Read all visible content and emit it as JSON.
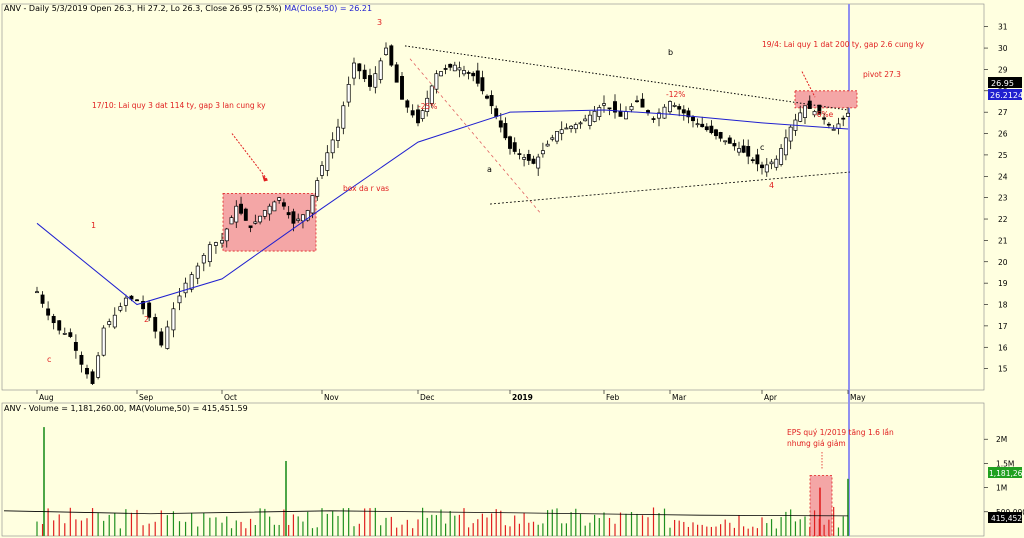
{
  "price_panel": {
    "header": "ANV - Daily 5/3/2019 Open 26.3, Hi 27.2, Lo 26.3, Close 26.95 (2.5%)",
    "ma_label": "MA(Close,50) = 26.21",
    "last_price_tag": "26.95",
    "ma_tag": "26.2124"
  },
  "volume_panel": {
    "header": "ANV - Volume = 1,181,260.00, MA(Volume,50) = 415,451.59",
    "volume_tag": "1,181,260",
    "ma_tag": "415,452"
  },
  "annotations": {
    "note_oct": "17/10: Lai quy 3 dat 114 ty, gap 3 lan cung ky",
    "box_label": "box da r vas",
    "note_apr": "19/4: Lai quy 1 dat 200 ty, gap 2.6 cung ky",
    "pivot": "pivot 27.3",
    "pct_25": "-25%",
    "pct_12": "-12%",
    "pct_6": "-6%e",
    "wave_1": "1",
    "wave_2": "2",
    "wave_3": "3",
    "wave_4": "4",
    "wave_c_aug": "c",
    "wave_a": "a",
    "wave_b": "b",
    "wave_c_apr": "c",
    "eps_note_1": "EPS quý 1/2019 tăng 1.6 lần",
    "eps_note_2": "nhưng giá giảm"
  },
  "colors": {
    "background": "#ffffe0",
    "up_candle": "#ffffff",
    "down_candle": "#000000",
    "ma_line": "#2020d0",
    "annotation": "#e02020",
    "highlight_box": "#f4a6a6",
    "volume_up": "#209020",
    "volume_down": "#e02020",
    "price_tag": "#000000",
    "ma_tag": "#2020d0",
    "volume_tag": "#20a020",
    "date_marker": "#9090f0"
  },
  "chart_data": [
    {
      "type": "candlestick",
      "title": "ANV - Daily 5/3/2019",
      "y_ticks": [
        15,
        16,
        17,
        18,
        19,
        20,
        21,
        22,
        23,
        24,
        25,
        26,
        27,
        28,
        29,
        30,
        31
      ],
      "ylim": [
        14,
        31.5
      ],
      "x_ticks": [
        "Aug",
        "Sep",
        "Oct",
        "Nov",
        "Dec",
        "2019",
        "Feb",
        "Mar",
        "Apr",
        "May"
      ],
      "price_path": [
        [
          "Aug",
          18.6
        ],
        [
          "Aug",
          17.5
        ],
        [
          "Aug",
          16.8
        ],
        [
          "Aug",
          16.5
        ],
        [
          "Aug",
          15.2
        ],
        [
          "Aug",
          14.3
        ],
        [
          "Aug",
          16.9
        ],
        [
          "Aug",
          17.5
        ],
        [
          "Aug",
          18.3
        ],
        [
          "Sep",
          18.2
        ],
        [
          "Sep",
          17.4
        ],
        [
          "Sep",
          16.1
        ],
        [
          "Sep",
          17.8
        ],
        [
          "Sep",
          19.0
        ],
        [
          "Sep",
          19.8
        ],
        [
          "Sep",
          20.8
        ],
        [
          "Oct",
          21.0
        ],
        [
          "Oct",
          22.6
        ],
        [
          "Oct",
          21.6
        ],
        [
          "Oct",
          22.4
        ],
        [
          "Oct",
          23.0
        ],
        [
          "Oct",
          21.8
        ],
        [
          "Oct",
          22.4
        ],
        [
          "Nov",
          24.5
        ],
        [
          "Nov",
          26.3
        ],
        [
          "Nov",
          29.3
        ],
        [
          "Nov",
          28.2
        ],
        [
          "Nov",
          30.0
        ],
        [
          "Nov",
          27.6
        ],
        [
          "Dec",
          26.5
        ],
        [
          "Dec",
          28.8
        ],
        [
          "Dec",
          29.2
        ],
        [
          "Dec",
          28.7
        ],
        [
          "Dec",
          27.3
        ],
        [
          "2019",
          25.3
        ],
        [
          "2019",
          24.6
        ],
        [
          "2019",
          26.1
        ],
        [
          "2019",
          26.5
        ],
        [
          "Feb",
          27.4
        ],
        [
          "Feb",
          26.8
        ],
        [
          "Feb",
          27.5
        ],
        [
          "Feb",
          26.7
        ],
        [
          "Mar",
          27.5
        ],
        [
          "Mar",
          26.6
        ],
        [
          "Mar",
          25.9
        ],
        [
          "Mar",
          25.3
        ],
        [
          "Apr",
          24.4
        ],
        [
          "Apr",
          24.8
        ],
        [
          "Apr",
          26.3
        ],
        [
          "Apr",
          27.3
        ],
        [
          "Apr",
          26.9
        ],
        [
          "Apr",
          26.2
        ],
        [
          "May",
          26.95
        ]
      ],
      "ma50_path": [
        [
          "Aug",
          21.8
        ],
        [
          "Sep",
          18.0
        ],
        [
          "Oct",
          19.2
        ],
        [
          "Nov",
          22.5
        ],
        [
          "Dec",
          25.6
        ],
        [
          "2019",
          27.0
        ],
        [
          "Feb",
          27.1
        ],
        [
          "Mar",
          26.9
        ],
        [
          "Apr",
          26.5
        ],
        [
          "May",
          26.21
        ]
      ],
      "last": {
        "open": 26.3,
        "high": 27.2,
        "low": 26.3,
        "close": 26.95,
        "change_pct": 2.5
      },
      "ma50_last": 26.21
    },
    {
      "type": "bar",
      "title": "ANV - Volume",
      "y_ticks": [
        "500,000",
        "1M",
        "1.5M",
        "2M"
      ],
      "ylim": [
        0,
        2500000
      ],
      "last_volume": 1181260,
      "ma50_volume": 415451.59,
      "spikes": [
        {
          "x": "Aug",
          "value": 2250000
        },
        {
          "x": "Nov",
          "value": 1550000
        },
        {
          "x": "Apr",
          "value": 1000000
        },
        {
          "x": "May",
          "value": 1181260
        }
      ]
    }
  ]
}
